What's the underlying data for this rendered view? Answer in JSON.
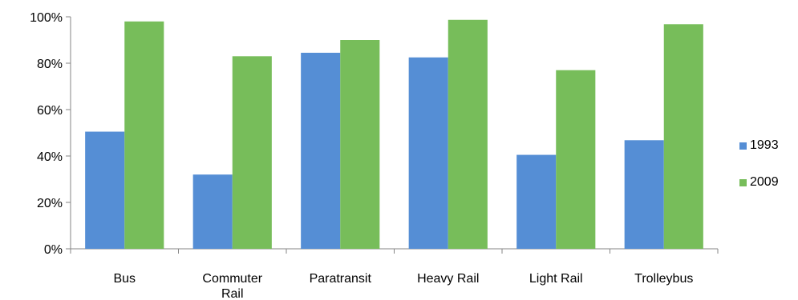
{
  "chart_data": {
    "type": "bar",
    "categories": [
      "Bus",
      "Commuter Rail",
      "Paratransit",
      "Heavy Rail",
      "Light Rail",
      "Trolleybus"
    ],
    "category_lines": [
      [
        "Bus"
      ],
      [
        "Commuter",
        "Rail"
      ],
      [
        "Paratransit"
      ],
      [
        "Heavy Rail"
      ],
      [
        "Light Rail"
      ],
      [
        "Trolleybus"
      ]
    ],
    "series": [
      {
        "name": "1993",
        "values": [
          50.5,
          32,
          84.5,
          82.5,
          40.5,
          46.8
        ],
        "color": "#558ed5"
      },
      {
        "name": "2009",
        "values": [
          98,
          83,
          90,
          98.7,
          77,
          96.8
        ],
        "color": "#77bd5a"
      }
    ],
    "yticks": [
      "0%",
      "20%",
      "40%",
      "60%",
      "80%",
      "100%"
    ],
    "ylim": [
      0,
      100
    ],
    "legend_position": "right",
    "grid": false
  }
}
